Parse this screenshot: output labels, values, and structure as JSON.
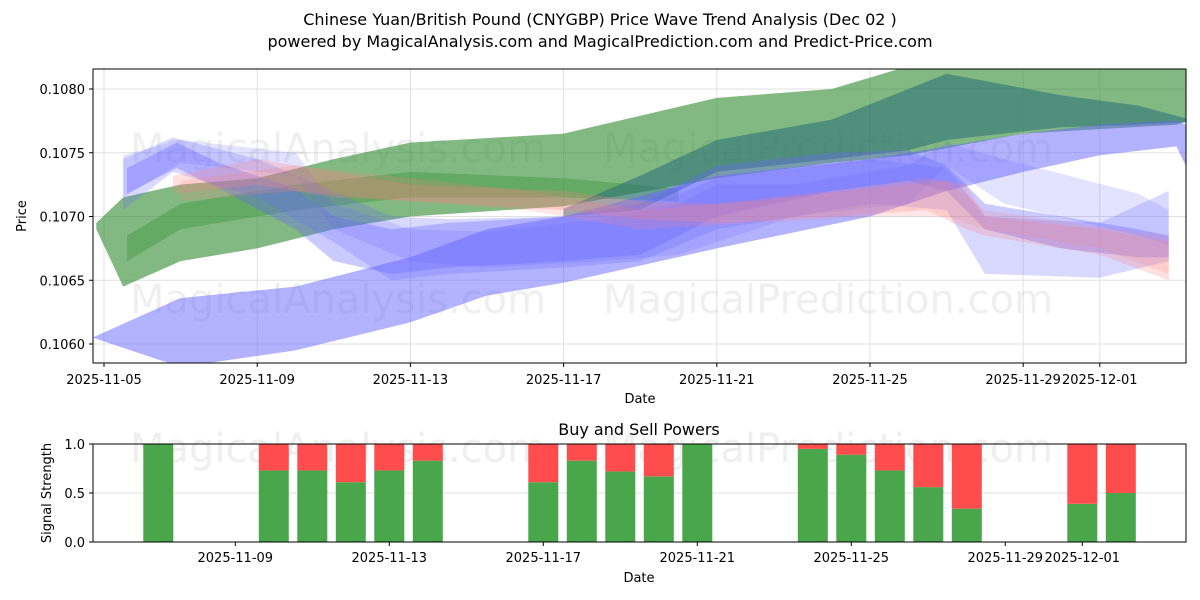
{
  "header": {
    "title": "Chinese Yuan/British Pound (CNYGBP) Price Wave Trend Analysis (Dec 02 )",
    "subtitle": "powered by MagicalAnalysis.com and MagicalPrediction.com and Predict-Price.com"
  },
  "watermarks": {
    "analysis": "MagicalAnalysis.com",
    "prediction": "MagicalPrediction.com"
  },
  "colors": {
    "blue": "#6666ff",
    "green": "#2e8b2e",
    "red": "#ff8080",
    "buy": "#4aa64a",
    "sell": "#ff4d4d",
    "grid": "#e0e0e0"
  },
  "chart_data": [
    {
      "type": "area",
      "title": "Chinese Yuan/British Pound (CNYGBP) Price Wave Trend Analysis (Dec 02 )",
      "xlabel": "Date",
      "ylabel": "Price",
      "ylim": [
        0.10585,
        0.10816
      ],
      "x_ticks": [
        "2025-11-05",
        "2025-11-09",
        "2025-11-13",
        "2025-11-17",
        "2025-11-21",
        "2025-11-25",
        "2025-11-29",
        "2025-12-01"
      ],
      "y_ticks": [
        "0.1060",
        "0.1065",
        "0.1070",
        "0.1075",
        "0.1080"
      ],
      "grid": true,
      "bands": [
        {
          "name": "green-upper-trend",
          "color": "green",
          "opacity": 0.6,
          "points": [
            [
              -0.2,
              0.10695,
              0.1069
            ],
            [
              0.5,
              0.10715,
              0.10645
            ],
            [
              2,
              0.10725,
              0.10665
            ],
            [
              4,
              0.1073,
              0.10675
            ],
            [
              6,
              0.10745,
              0.1069
            ],
            [
              8,
              0.10758,
              0.107
            ],
            [
              12,
              0.10765,
              0.10708
            ],
            [
              16,
              0.10793,
              0.1073
            ],
            [
              19,
              0.108,
              0.10742
            ],
            [
              21,
              0.10818,
              0.10748
            ],
            [
              24,
              0.1083,
              0.10765
            ],
            [
              28,
              0.10835,
              0.10772
            ],
            [
              28.8,
              0.10815,
              0.1078
            ]
          ]
        },
        {
          "name": "green-inner-trend",
          "color": "green",
          "opacity": 0.35,
          "points": [
            [
              0.6,
              0.10685,
              0.10665
            ],
            [
              2,
              0.1071,
              0.1069
            ],
            [
              5,
              0.10725,
              0.10705
            ],
            [
              8,
              0.10735,
              0.10715
            ],
            [
              12,
              0.1073,
              0.10715
            ],
            [
              15,
              0.10722,
              0.10712
            ]
          ]
        },
        {
          "name": "teal-trend",
          "color": "teal",
          "opacity": 0.55,
          "points": [
            [
              12,
              0.10706,
              0.107
            ],
            [
              14,
              0.10732,
              0.10705
            ],
            [
              16,
              0.1076,
              0.10735
            ],
            [
              19,
              0.10776,
              0.10745
            ],
            [
              21,
              0.108,
              0.10752
            ],
            [
              22,
              0.10812,
              0.1076
            ],
            [
              25,
              0.10795,
              0.1077
            ],
            [
              27,
              0.10787,
              0.10772
            ],
            [
              28.5,
              0.10775,
              0.10774
            ]
          ]
        },
        {
          "name": "blue-lower-trend",
          "color": "blue",
          "opacity": 0.5,
          "points": [
            [
              -0.3,
              0.10605,
              0.10605
            ],
            [
              2,
              0.10636,
              0.10582
            ],
            [
              5,
              0.10645,
              0.10595
            ],
            [
              8,
              0.10668,
              0.10617
            ],
            [
              10,
              0.1069,
              0.10638
            ],
            [
              12,
              0.107,
              0.10648
            ],
            [
              16,
              0.10732,
              0.10675
            ],
            [
              20,
              0.10745,
              0.107
            ],
            [
              22,
              0.10755,
              0.1072
            ],
            [
              24,
              0.10765,
              0.10735
            ],
            [
              26,
              0.10772,
              0.10748
            ],
            [
              28,
              0.10775,
              0.10755
            ],
            [
              28.6,
              0.10768,
              0.10718
            ]
          ]
        },
        {
          "name": "blue-wave-1",
          "color": "blue",
          "opacity": 0.35,
          "points": [
            [
              0.6,
              0.10738,
              0.10718
            ],
            [
              1.9,
              0.10758,
              0.10738
            ],
            [
              3,
              0.10742,
              0.10722
            ],
            [
              5,
              0.10722,
              0.1069
            ],
            [
              6,
              0.107,
              0.10665
            ],
            [
              7.5,
              0.1069,
              0.10655
            ],
            [
              9,
              0.10695,
              0.1066
            ],
            [
              12,
              0.107,
              0.10665
            ],
            [
              14,
              0.1071,
              0.1067
            ],
            [
              16,
              0.1074,
              0.107
            ],
            [
              19,
              0.1075,
              0.1072
            ],
            [
              21,
              0.10752,
              0.10728
            ],
            [
              22,
              0.1074,
              0.1072
            ],
            [
              23,
              0.1071,
              0.1069
            ],
            [
              25,
              0.107,
              0.10675
            ],
            [
              27,
              0.1069,
              0.10668
            ],
            [
              27.8,
              0.10685,
              0.10668
            ]
          ]
        },
        {
          "name": "blue-wave-2",
          "color": "blue",
          "opacity": 0.25,
          "points": [
            [
              0.5,
              0.10745,
              0.10705
            ],
            [
              1.8,
              0.10762,
              0.10735
            ],
            [
              4,
              0.10745,
              0.10715
            ],
            [
              6,
              0.1072,
              0.1068
            ],
            [
              7.5,
              0.107,
              0.1065
            ],
            [
              9,
              0.10698,
              0.10655
            ],
            [
              12,
              0.107,
              0.1066
            ],
            [
              14,
              0.10705,
              0.10665
            ],
            [
              16,
              0.1073,
              0.1069
            ],
            [
              20,
              0.10745,
              0.1071
            ],
            [
              22,
              0.10738,
              0.10705
            ],
            [
              23,
              0.107,
              0.10655
            ],
            [
              26,
              0.10695,
              0.10652
            ],
            [
              27.8,
              0.1072,
              0.10665
            ]
          ]
        },
        {
          "name": "blue-wave-3",
          "color": "blue",
          "opacity": 0.18,
          "points": [
            [
              0.5,
              0.10748,
              0.10715
            ],
            [
              2,
              0.1076,
              0.10742
            ],
            [
              5,
              0.1075,
              0.10732
            ],
            [
              6,
              0.1071,
              0.1069
            ],
            [
              8,
              0.1069,
              0.10665
            ],
            [
              10,
              0.10688,
              0.1066
            ],
            [
              13,
              0.10698,
              0.10665
            ],
            [
              15,
              0.1071,
              0.1067
            ],
            [
              16,
              0.10725,
              0.1068
            ],
            [
              18,
              0.10725,
              0.107
            ],
            [
              21,
              0.1074,
              0.1071
            ],
            [
              22,
              0.10758,
              0.1074
            ],
            [
              23.5,
              0.10745,
              0.1071
            ],
            [
              27,
              0.10718,
              0.10685
            ],
            [
              27.8,
              0.10705,
              0.10678
            ]
          ]
        },
        {
          "name": "red-wave-1",
          "color": "red",
          "opacity": 0.25,
          "points": [
            [
              1.8,
              0.10732,
              0.10718
            ],
            [
              4,
              0.10745,
              0.10725
            ],
            [
              6,
              0.10735,
              0.10715
            ],
            [
              8,
              0.10725,
              0.10712
            ],
            [
              12,
              0.1072,
              0.10705
            ],
            [
              14,
              0.10712,
              0.10698
            ],
            [
              16,
              0.1071,
              0.10695
            ],
            [
              19,
              0.1072,
              0.107
            ],
            [
              21.5,
              0.1073,
              0.10705
            ],
            [
              22.5,
              0.10725,
              0.1069
            ],
            [
              23,
              0.107,
              0.10685
            ],
            [
              26,
              0.1069,
              0.1067
            ],
            [
              27.8,
              0.1068,
              0.1065
            ]
          ]
        },
        {
          "name": "red-wave-2",
          "color": "red",
          "opacity": 0.2,
          "points": [
            [
              2,
              0.10728,
              0.10712
            ],
            [
              5,
              0.1074,
              0.1072
            ],
            [
              8,
              0.1073,
              0.10712
            ],
            [
              11,
              0.1072,
              0.10705
            ],
            [
              14,
              0.10705,
              0.1069
            ],
            [
              17,
              0.10712,
              0.10695
            ],
            [
              20,
              0.10722,
              0.107
            ],
            [
              22,
              0.10728,
              0.107
            ],
            [
              23,
              0.10705,
              0.1069
            ],
            [
              26,
              0.10692,
              0.10675
            ],
            [
              27.8,
              0.10685,
              0.10655
            ]
          ]
        }
      ]
    },
    {
      "type": "bar",
      "title": "Buy and Sell Powers",
      "xlabel": "Date",
      "ylabel": "Signal Strength",
      "ylim": [
        0,
        1
      ],
      "y_ticks": [
        "0.0",
        "0.5",
        "1.0"
      ],
      "x_ticks": [
        "2025-11-09",
        "2025-11-13",
        "2025-11-17",
        "2025-11-21",
        "2025-11-25",
        "2025-11-29",
        "2025-12-01"
      ],
      "categories": [
        "2025-11-07",
        "2025-11-10",
        "2025-11-11",
        "2025-11-12",
        "2025-11-13",
        "2025-11-14",
        "2025-11-17",
        "2025-11-18",
        "2025-11-19",
        "2025-11-20",
        "2025-11-21",
        "2025-11-24",
        "2025-11-25",
        "2025-11-26",
        "2025-11-27",
        "2025-11-28",
        "2025-12-01",
        "2025-12-02"
      ],
      "series": [
        {
          "name": "Buy",
          "values": [
            1.0,
            0.73,
            0.73,
            0.61,
            0.73,
            0.83,
            0.61,
            0.83,
            0.72,
            0.67,
            1.0,
            0.95,
            0.89,
            0.73,
            0.56,
            0.34,
            0.39,
            0.5
          ]
        },
        {
          "name": "Sell",
          "values": [
            0.0,
            0.27,
            0.27,
            0.39,
            0.27,
            0.17,
            0.39,
            0.17,
            0.28,
            0.33,
            0.0,
            0.05,
            0.11,
            0.27,
            0.44,
            0.66,
            0.61,
            0.5
          ]
        }
      ]
    }
  ]
}
